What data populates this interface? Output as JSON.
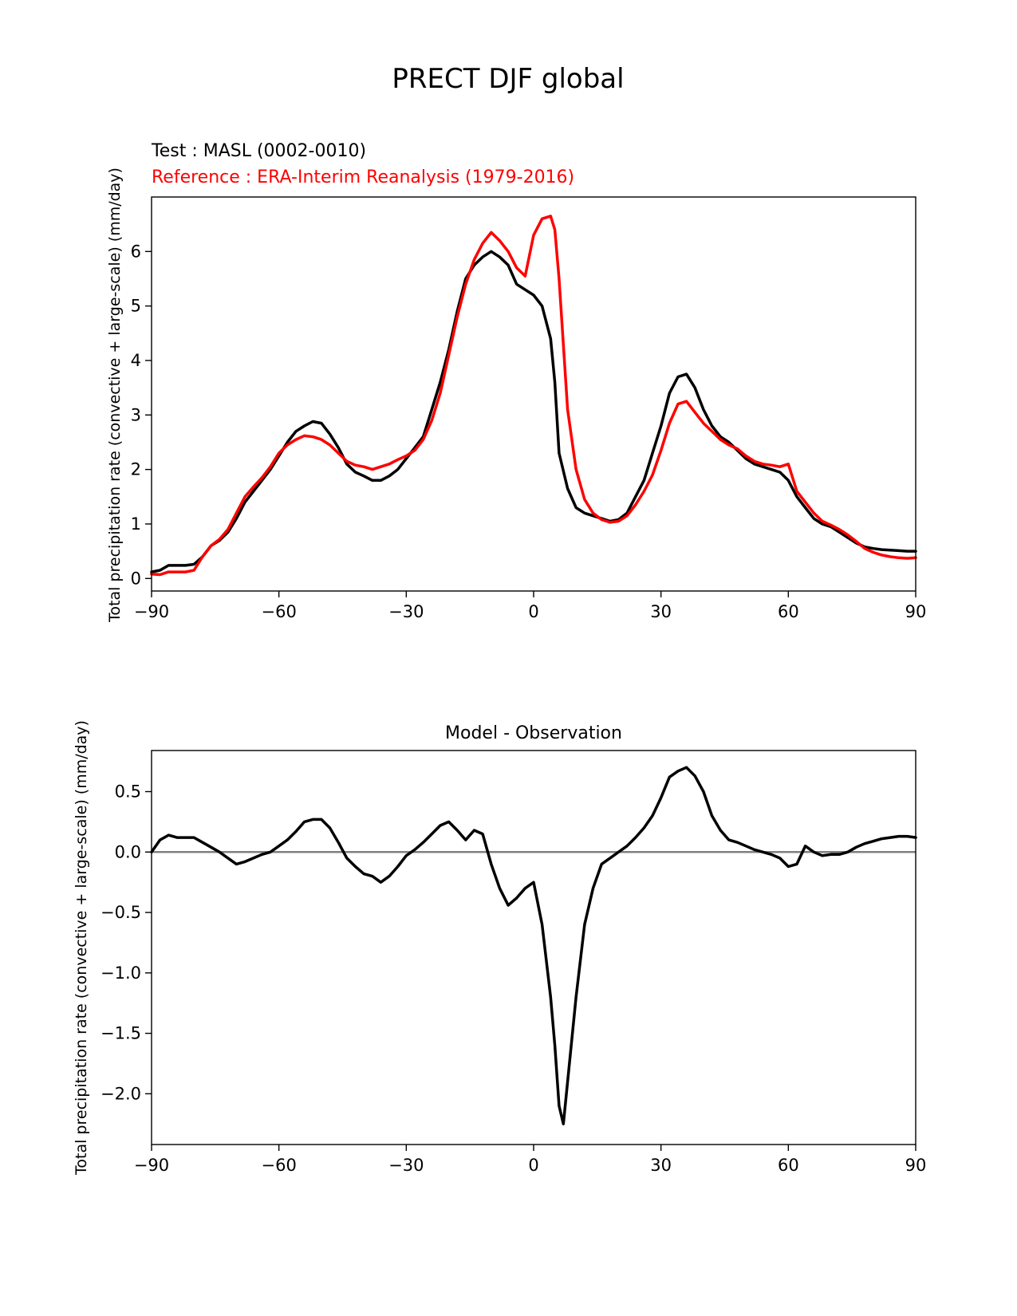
{
  "figure": {
    "title": "PRECT DJF global"
  },
  "colors": {
    "test": "#000000",
    "reference": "#ff0000",
    "zero_line": "#808080"
  },
  "chart_data": [
    {
      "type": "line",
      "test_label": "Test : MASL (0002-0010)",
      "reference_label": "Reference : ERA-Interim Reanalysis (1979-2016)",
      "ylabel": "Total precipitation rate (convective + large-scale) (mm/day)",
      "xlabel": "",
      "xlim": [
        -90,
        90
      ],
      "ylim": [
        -0.23,
        7.0
      ],
      "xticks": [
        -90,
        -60,
        -30,
        0,
        30,
        60,
        90
      ],
      "xtick_labels": [
        "−90",
        "−60",
        "−30",
        "0",
        "30",
        "60",
        "90"
      ],
      "yticks": [
        0,
        1,
        2,
        3,
        4,
        5,
        6
      ],
      "ytick_labels": [
        "0",
        "1",
        "2",
        "3",
        "4",
        "5",
        "6"
      ],
      "series": [
        {
          "key": "test",
          "x": [
            -90,
            -88,
            -86,
            -84,
            -82,
            -80,
            -78,
            -76,
            -74,
            -72,
            -70,
            -68,
            -66,
            -64,
            -62,
            -60,
            -58,
            -56,
            -54,
            -52,
            -50,
            -48,
            -46,
            -44,
            -42,
            -40,
            -38,
            -36,
            -34,
            -32,
            -30,
            -28,
            -26,
            -24,
            -22,
            -20,
            -18,
            -16,
            -14,
            -12,
            -10,
            -8,
            -6,
            -4,
            -2,
            0,
            2,
            4,
            5,
            6,
            8,
            10,
            12,
            14,
            16,
            18,
            20,
            22,
            24,
            26,
            28,
            30,
            32,
            34,
            36,
            38,
            40,
            42,
            44,
            46,
            48,
            50,
            52,
            54,
            56,
            58,
            60,
            62,
            64,
            66,
            68,
            70,
            72,
            74,
            76,
            78,
            80,
            82,
            84,
            86,
            88,
            90
          ],
          "y": [
            0.12,
            0.15,
            0.24,
            0.24,
            0.24,
            0.26,
            0.4,
            0.6,
            0.7,
            0.85,
            1.1,
            1.4,
            1.6,
            1.8,
            2.0,
            2.25,
            2.5,
            2.7,
            2.8,
            2.88,
            2.85,
            2.65,
            2.4,
            2.1,
            1.95,
            1.88,
            1.8,
            1.8,
            1.88,
            2.0,
            2.2,
            2.4,
            2.6,
            3.1,
            3.6,
            4.2,
            4.9,
            5.5,
            5.75,
            5.9,
            6.0,
            5.9,
            5.75,
            5.4,
            5.3,
            5.2,
            5.0,
            4.4,
            3.6,
            2.3,
            1.65,
            1.3,
            1.2,
            1.15,
            1.1,
            1.05,
            1.08,
            1.2,
            1.5,
            1.8,
            2.3,
            2.8,
            3.4,
            3.7,
            3.75,
            3.5,
            3.1,
            2.8,
            2.6,
            2.5,
            2.35,
            2.2,
            2.1,
            2.05,
            2.0,
            1.95,
            1.8,
            1.5,
            1.3,
            1.1,
            1.0,
            0.95,
            0.85,
            0.75,
            0.65,
            0.58,
            0.55,
            0.53,
            0.52,
            0.51,
            0.5,
            0.5
          ]
        },
        {
          "key": "reference",
          "x": [
            -90,
            -88,
            -86,
            -84,
            -82,
            -80,
            -78,
            -76,
            -74,
            -72,
            -70,
            -68,
            -66,
            -64,
            -62,
            -60,
            -58,
            -56,
            -54,
            -52,
            -50,
            -48,
            -46,
            -44,
            -42,
            -40,
            -38,
            -36,
            -34,
            -32,
            -30,
            -28,
            -26,
            -24,
            -22,
            -20,
            -18,
            -16,
            -14,
            -12,
            -10,
            -8,
            -6,
            -4,
            -2,
            0,
            2,
            4,
            5,
            6,
            8,
            10,
            12,
            14,
            16,
            18,
            20,
            22,
            24,
            26,
            28,
            30,
            32,
            34,
            36,
            38,
            40,
            42,
            44,
            46,
            48,
            50,
            52,
            54,
            56,
            58,
            60,
            62,
            64,
            66,
            68,
            70,
            72,
            74,
            76,
            78,
            80,
            82,
            84,
            86,
            88,
            90
          ],
          "y": [
            0.08,
            0.07,
            0.12,
            0.12,
            0.12,
            0.15,
            0.4,
            0.6,
            0.72,
            0.9,
            1.2,
            1.5,
            1.68,
            1.85,
            2.05,
            2.3,
            2.45,
            2.55,
            2.62,
            2.6,
            2.55,
            2.45,
            2.3,
            2.15,
            2.08,
            2.05,
            2.0,
            2.05,
            2.1,
            2.18,
            2.25,
            2.35,
            2.55,
            2.9,
            3.4,
            4.1,
            4.8,
            5.4,
            5.85,
            6.15,
            6.35,
            6.2,
            6.0,
            5.7,
            5.55,
            6.3,
            6.6,
            6.65,
            6.4,
            5.5,
            3.1,
            2.0,
            1.45,
            1.2,
            1.08,
            1.03,
            1.05,
            1.15,
            1.35,
            1.6,
            1.9,
            2.35,
            2.85,
            3.2,
            3.25,
            3.05,
            2.85,
            2.7,
            2.55,
            2.45,
            2.38,
            2.25,
            2.15,
            2.1,
            2.08,
            2.05,
            2.1,
            1.6,
            1.4,
            1.2,
            1.05,
            0.98,
            0.9,
            0.8,
            0.68,
            0.55,
            0.48,
            0.43,
            0.4,
            0.38,
            0.37,
            0.38
          ]
        }
      ]
    },
    {
      "type": "line",
      "title": "Model - Observation",
      "ylabel": "Total precipitation rate (convective + large-scale) (mm/day)",
      "xlabel": "",
      "xlim": [
        -90,
        90
      ],
      "ylim": [
        -2.42,
        0.84
      ],
      "xticks": [
        -90,
        -60,
        -30,
        0,
        30,
        60,
        90
      ],
      "xtick_labels": [
        "−90",
        "−60",
        "−30",
        "0",
        "30",
        "60",
        "90"
      ],
      "yticks": [
        -2.0,
        -1.5,
        -1.0,
        -0.5,
        0.0,
        0.5
      ],
      "ytick_labels": [
        "−2.0",
        "−1.5",
        "−1.0",
        "−0.5",
        "0.0",
        "0.5"
      ],
      "zero_line": 0,
      "series": [
        {
          "key": "difference",
          "x": [
            -90,
            -88,
            -86,
            -84,
            -82,
            -80,
            -78,
            -76,
            -74,
            -72,
            -70,
            -68,
            -66,
            -64,
            -62,
            -60,
            -58,
            -56,
            -54,
            -52,
            -50,
            -48,
            -46,
            -44,
            -42,
            -40,
            -38,
            -36,
            -34,
            -32,
            -30,
            -28,
            -26,
            -24,
            -22,
            -20,
            -18,
            -16,
            -14,
            -12,
            -10,
            -8,
            -6,
            -4,
            -2,
            0,
            2,
            4,
            5,
            6,
            7,
            8,
            10,
            12,
            14,
            16,
            18,
            20,
            22,
            24,
            26,
            28,
            30,
            32,
            34,
            36,
            38,
            40,
            42,
            44,
            46,
            48,
            50,
            52,
            54,
            56,
            58,
            60,
            62,
            64,
            66,
            68,
            70,
            72,
            74,
            76,
            78,
            80,
            82,
            84,
            86,
            88,
            90
          ],
          "y": [
            0.0,
            0.1,
            0.14,
            0.12,
            0.12,
            0.12,
            0.08,
            0.04,
            0.0,
            -0.05,
            -0.1,
            -0.08,
            -0.05,
            -0.02,
            0.0,
            0.05,
            0.1,
            0.17,
            0.25,
            0.27,
            0.27,
            0.2,
            0.08,
            -0.05,
            -0.12,
            -0.18,
            -0.2,
            -0.25,
            -0.2,
            -0.12,
            -0.03,
            0.02,
            0.08,
            0.15,
            0.22,
            0.25,
            0.18,
            0.1,
            0.18,
            0.15,
            -0.1,
            -0.3,
            -0.44,
            -0.38,
            -0.3,
            -0.25,
            -0.6,
            -1.2,
            -1.6,
            -2.1,
            -2.25,
            -1.9,
            -1.2,
            -0.6,
            -0.3,
            -0.1,
            -0.05,
            0.0,
            0.05,
            0.12,
            0.2,
            0.3,
            0.45,
            0.62,
            0.67,
            0.7,
            0.63,
            0.5,
            0.3,
            0.18,
            0.1,
            0.08,
            0.05,
            0.02,
            0.0,
            -0.02,
            -0.05,
            -0.12,
            -0.1,
            0.05,
            0.0,
            -0.03,
            -0.02,
            -0.02,
            0.0,
            0.04,
            0.07,
            0.09,
            0.11,
            0.12,
            0.13,
            0.13,
            0.12
          ]
        }
      ]
    }
  ]
}
